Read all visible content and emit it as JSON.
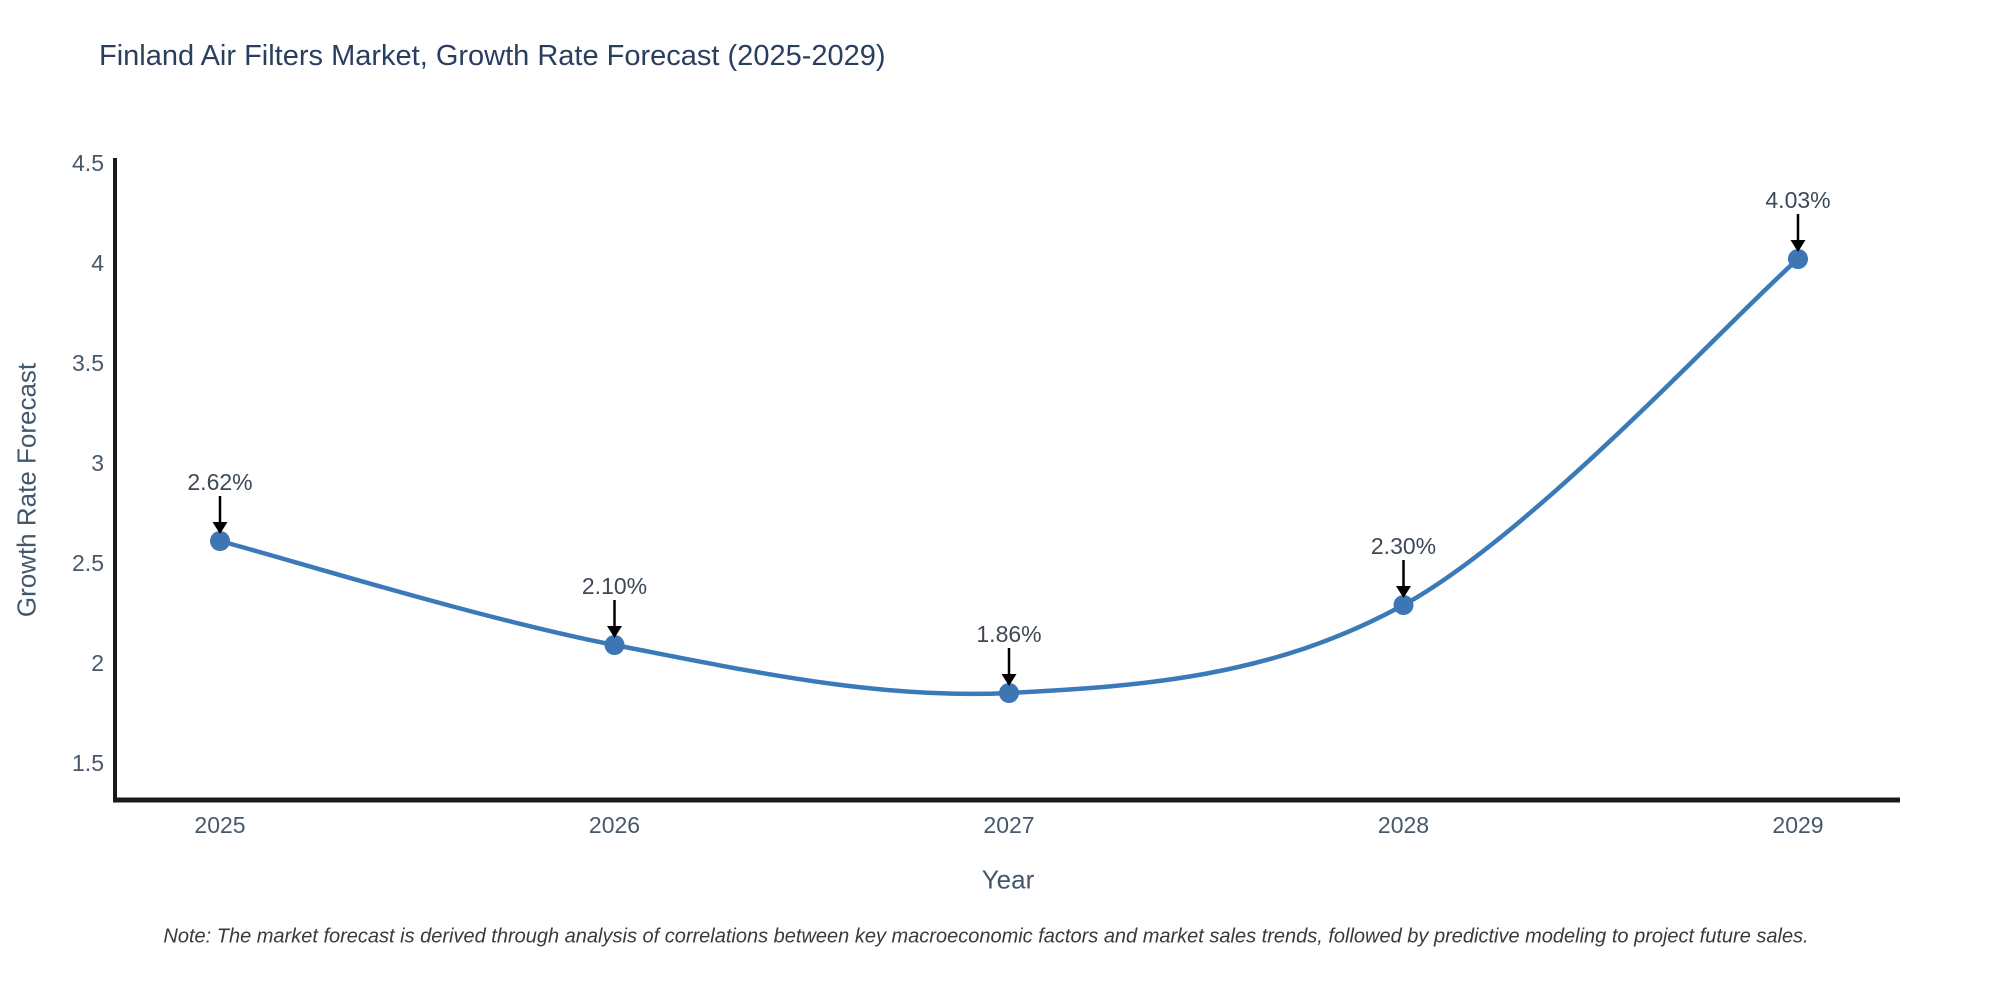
{
  "title": "Finland Air Filters Market, Growth Rate Forecast (2025-2029)",
  "note": "Note: The market forecast is derived through analysis of correlations between key macroeconomic factors and market sales trends, followed by predictive modeling to project future sales.",
  "chart_data": {
    "type": "line",
    "title": "Finland Air Filters Market, Growth Rate Forecast (2025-2029)",
    "xlabel": "Year",
    "ylabel": "Growth Rate Forecast",
    "x": [
      "2025",
      "2026",
      "2027",
      "2028",
      "2029"
    ],
    "values": [
      2.62,
      2.1,
      1.86,
      2.3,
      4.03
    ],
    "point_labels": [
      "2.62%",
      "2.10%",
      "1.86%",
      "2.30%",
      "4.03%"
    ],
    "yticks": [
      1.5,
      2,
      2.5,
      3,
      3.5,
      4,
      4.5
    ],
    "ytick_labels": [
      "1.5",
      "2",
      "2.5",
      "3",
      "3.5",
      "4",
      "4.5"
    ],
    "ylim": [
      1.325,
      4.55
    ],
    "grid": false,
    "legend": false,
    "curve": "spline",
    "marker": "circle",
    "annotations": "value labels with down arrows above each point"
  },
  "colors": {
    "background": "#ffffff",
    "title": "#2a3f5f",
    "axis_line": "#1a1a1a",
    "tick_label": "#47586b",
    "axis_title": "#42576b",
    "line": "#3a7ab8",
    "marker": "#3d76b2",
    "annotation_text": "#3d4956",
    "annotation_arrow": "#000000",
    "note_text": "#3a3a3a"
  }
}
